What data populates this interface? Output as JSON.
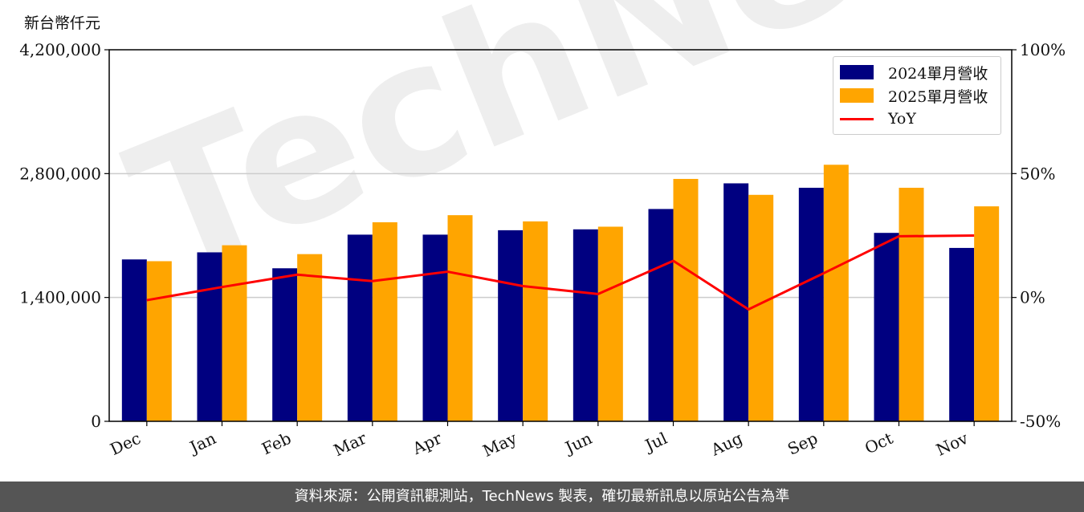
{
  "unit_label": "新台幣仟元",
  "footer_text": "資料來源：公開資訊觀測站，TechNews 製表，確切最新訊息以原站公告為準",
  "watermark_text": "TechNews",
  "colors": {
    "bar_2024": "#000080",
    "bar_2025": "#FFA500",
    "yoy_line": "#FF0000",
    "grid": "#cccccc",
    "footer_bg": "#555555"
  },
  "chart_data": {
    "type": "bar",
    "categories": [
      "Dec",
      "Jan",
      "Feb",
      "Mar",
      "Apr",
      "May",
      "Jun",
      "Jul",
      "Aug",
      "Sep",
      "Oct",
      "Nov"
    ],
    "series": [
      {
        "name": "2024單月營收",
        "values": [
          1830000,
          1910000,
          1730000,
          2110000,
          2110000,
          2160000,
          2170000,
          2400000,
          2690000,
          2640000,
          2130000,
          1960000
        ]
      },
      {
        "name": "2025單月營收",
        "values": [
          1810000,
          1990000,
          1890000,
          2250000,
          2330000,
          2260000,
          2200000,
          2740000,
          2560000,
          2900000,
          2640000,
          2430000
        ]
      },
      {
        "name": "YoY",
        "type": "line",
        "axis": "right",
        "values": [
          -0.011,
          0.042,
          0.092,
          0.066,
          0.104,
          0.046,
          0.014,
          0.148,
          -0.048,
          0.098,
          0.247,
          0.25
        ]
      }
    ],
    "ylim": [
      0,
      4200000
    ],
    "yticks": [
      "0",
      "1,400,000",
      "2,800,000",
      "4,200,000"
    ],
    "ylim_right": [
      -0.5,
      1.0
    ],
    "yticks_right": [
      "-50%",
      "0%",
      "50%",
      "100%"
    ],
    "grid": true,
    "legend_placement": "top-right"
  }
}
